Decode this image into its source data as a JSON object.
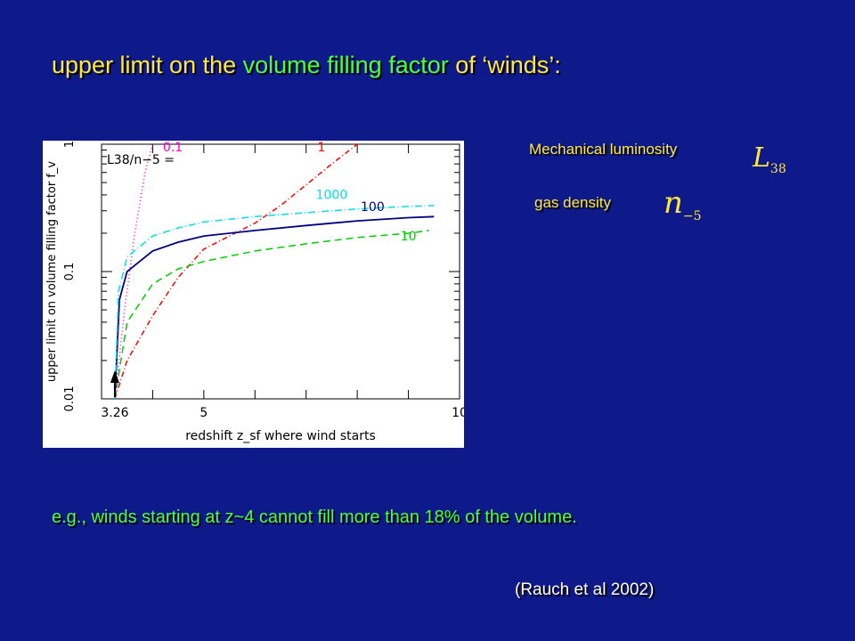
{
  "slide": {
    "title_part1": "upper limit on the ",
    "title_part2": "volume filling factor",
    "title_part3": " of ‘winds’:",
    "legend_luminosity": "Mechanical luminosity",
    "legend_luminosity_symbol": "L",
    "legend_luminosity_sub": "38",
    "legend_density": "gas density",
    "legend_density_symbol": "n",
    "legend_density_sub": "−5",
    "example": "e.g., winds starting at z~4 cannot fill more than 18% of the volume.",
    "citation": "(Rauch et al 2002)"
  },
  "colors": {
    "background": "#0f1a8a",
    "title": "#ffe83a",
    "highlight": "#4cff3a",
    "series_01": "#ff00cc",
    "series_1": "#ff0000",
    "series_10": "#00cc00",
    "series_100": "#000080",
    "series_1000": "#00e0e0"
  },
  "chart_data": {
    "type": "line",
    "xlabel": "redshift z_sf where wind starts",
    "ylabel": "upper limit on volume filling factor f_v",
    "x_scale": "linear",
    "y_scale": "log",
    "xlim": [
      3.0,
      10.0
    ],
    "ylim": [
      0.01,
      1.0
    ],
    "x_ticks": [
      "3.26",
      "5",
      "10"
    ],
    "y_ticks": [
      "0.01",
      "0.1",
      "1"
    ],
    "legend_header": "L38/n−5 =",
    "marker_label": "3.26",
    "series": [
      {
        "name": "0.1",
        "color": "#ff00cc",
        "dash": "1,3",
        "x": [
          3.26,
          3.45,
          3.65,
          3.85,
          4.0
        ],
        "y": [
          0.01,
          0.05,
          0.2,
          0.6,
          1.0
        ]
      },
      {
        "name": "1",
        "color": "#ff0000",
        "dash": "6,3,1,3",
        "x": [
          3.26,
          3.5,
          4.0,
          4.5,
          5.0,
          5.5,
          6.0,
          6.5,
          7.0,
          7.5,
          8.0
        ],
        "y": [
          0.01,
          0.02,
          0.045,
          0.09,
          0.15,
          0.19,
          0.24,
          0.33,
          0.48,
          0.7,
          1.0
        ]
      },
      {
        "name": "10",
        "color": "#00cc00",
        "dash": "8,5",
        "x": [
          3.26,
          3.5,
          4.0,
          4.5,
          5.0,
          6.0,
          7.0,
          8.0,
          9.0,
          9.4
        ],
        "y": [
          0.01,
          0.04,
          0.08,
          0.105,
          0.12,
          0.145,
          0.165,
          0.185,
          0.2,
          0.21
        ]
      },
      {
        "name": "100",
        "color": "#000080",
        "dash": "",
        "x": [
          3.26,
          3.35,
          3.5,
          4.0,
          4.5,
          5.0,
          6.0,
          7.0,
          8.0,
          9.0,
          9.5
        ],
        "y": [
          0.01,
          0.06,
          0.1,
          0.145,
          0.17,
          0.19,
          0.21,
          0.23,
          0.25,
          0.265,
          0.27
        ]
      },
      {
        "name": "1000",
        "color": "#00e0e0",
        "dash": "8,3,1,3",
        "x": [
          3.26,
          3.33,
          3.5,
          4.0,
          4.5,
          5.0,
          6.0,
          7.0,
          8.0,
          9.0,
          9.5
        ],
        "y": [
          0.01,
          0.07,
          0.13,
          0.19,
          0.22,
          0.245,
          0.27,
          0.29,
          0.31,
          0.325,
          0.33
        ]
      }
    ]
  }
}
